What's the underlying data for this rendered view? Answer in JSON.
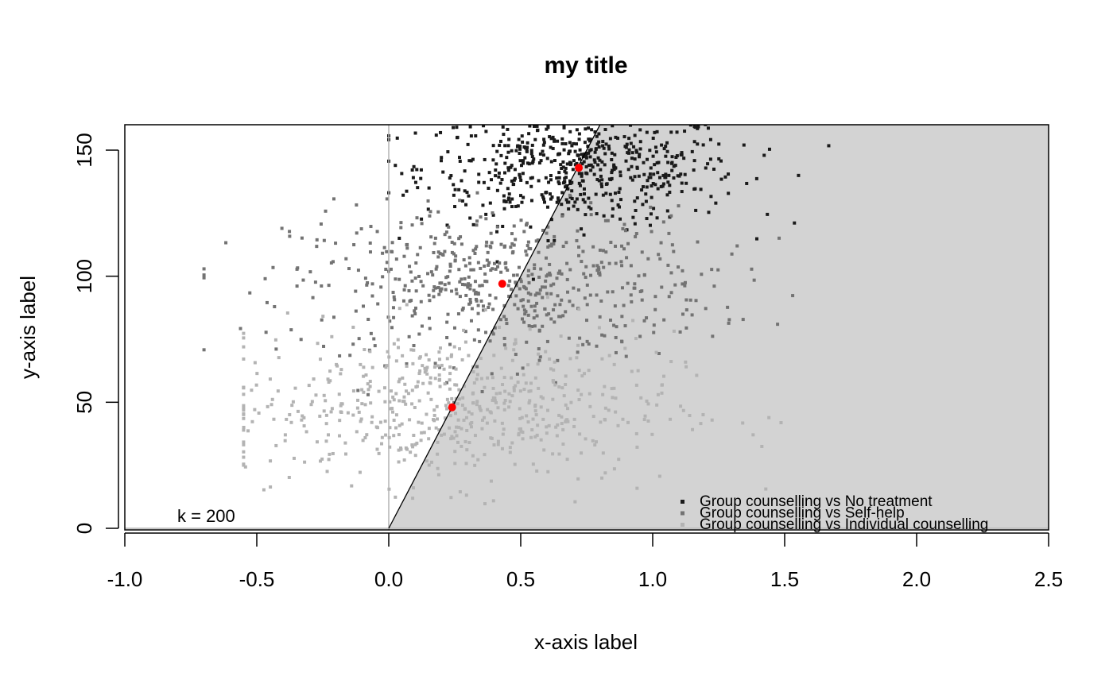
{
  "chart_data": {
    "type": "scatter",
    "title": "my title",
    "xlabel": "x-axis label",
    "ylabel": "y-axis label",
    "xlim": [
      -1.0,
      2.5
    ],
    "ylim": [
      0,
      160
    ],
    "x_ticks": [
      "-1.0",
      "-0.5",
      "0.0",
      "0.5",
      "1.0",
      "1.5",
      "2.0",
      "2.5"
    ],
    "y_ticks": [
      "0",
      "50",
      "100",
      "150"
    ],
    "grid": false,
    "legend": {
      "position": "bottom-right",
      "entries": [
        "Group counselling vs No treatment",
        "Group counselling vs Self-help",
        "Group counselling vs Individual counselling"
      ]
    },
    "annotation": "k = 200",
    "threshold_line": {
      "slope": 200,
      "intercept": 0
    },
    "shaded_region": "x > y / 200",
    "colors": {
      "no_treatment": "#1a1a1a",
      "self_help": "#737373",
      "individual": "#b3b3b3",
      "mean": "#ff0000",
      "shade": "#d3d3d3",
      "reference_line": "#b3b3b3"
    },
    "series": [
      {
        "name": "Group counselling vs No treatment",
        "color_key": "no_treatment",
        "cloud": {
          "mean_x": 0.72,
          "mean_y": 143,
          "sd_x": 0.3,
          "sd_y": 11,
          "n": 600,
          "x_range": [
            0.0,
            2.3
          ]
        }
      },
      {
        "name": "Group counselling vs Self-help",
        "color_key": "self_help",
        "cloud": {
          "mean_x": 0.43,
          "mean_y": 97,
          "sd_x": 0.4,
          "sd_y": 15,
          "n": 600,
          "x_range": [
            -0.7,
            2.05
          ]
        }
      },
      {
        "name": "Group counselling vs Individual counselling",
        "color_key": "individual",
        "cloud": {
          "mean_x": 0.24,
          "mean_y": 48,
          "sd_x": 0.42,
          "sd_y": 15,
          "n": 600,
          "x_range": [
            -0.55,
            1.75
          ]
        }
      }
    ],
    "means": [
      {
        "x": 0.72,
        "y": 143
      },
      {
        "x": 0.43,
        "y": 97
      },
      {
        "x": 0.24,
        "y": 48
      }
    ]
  }
}
